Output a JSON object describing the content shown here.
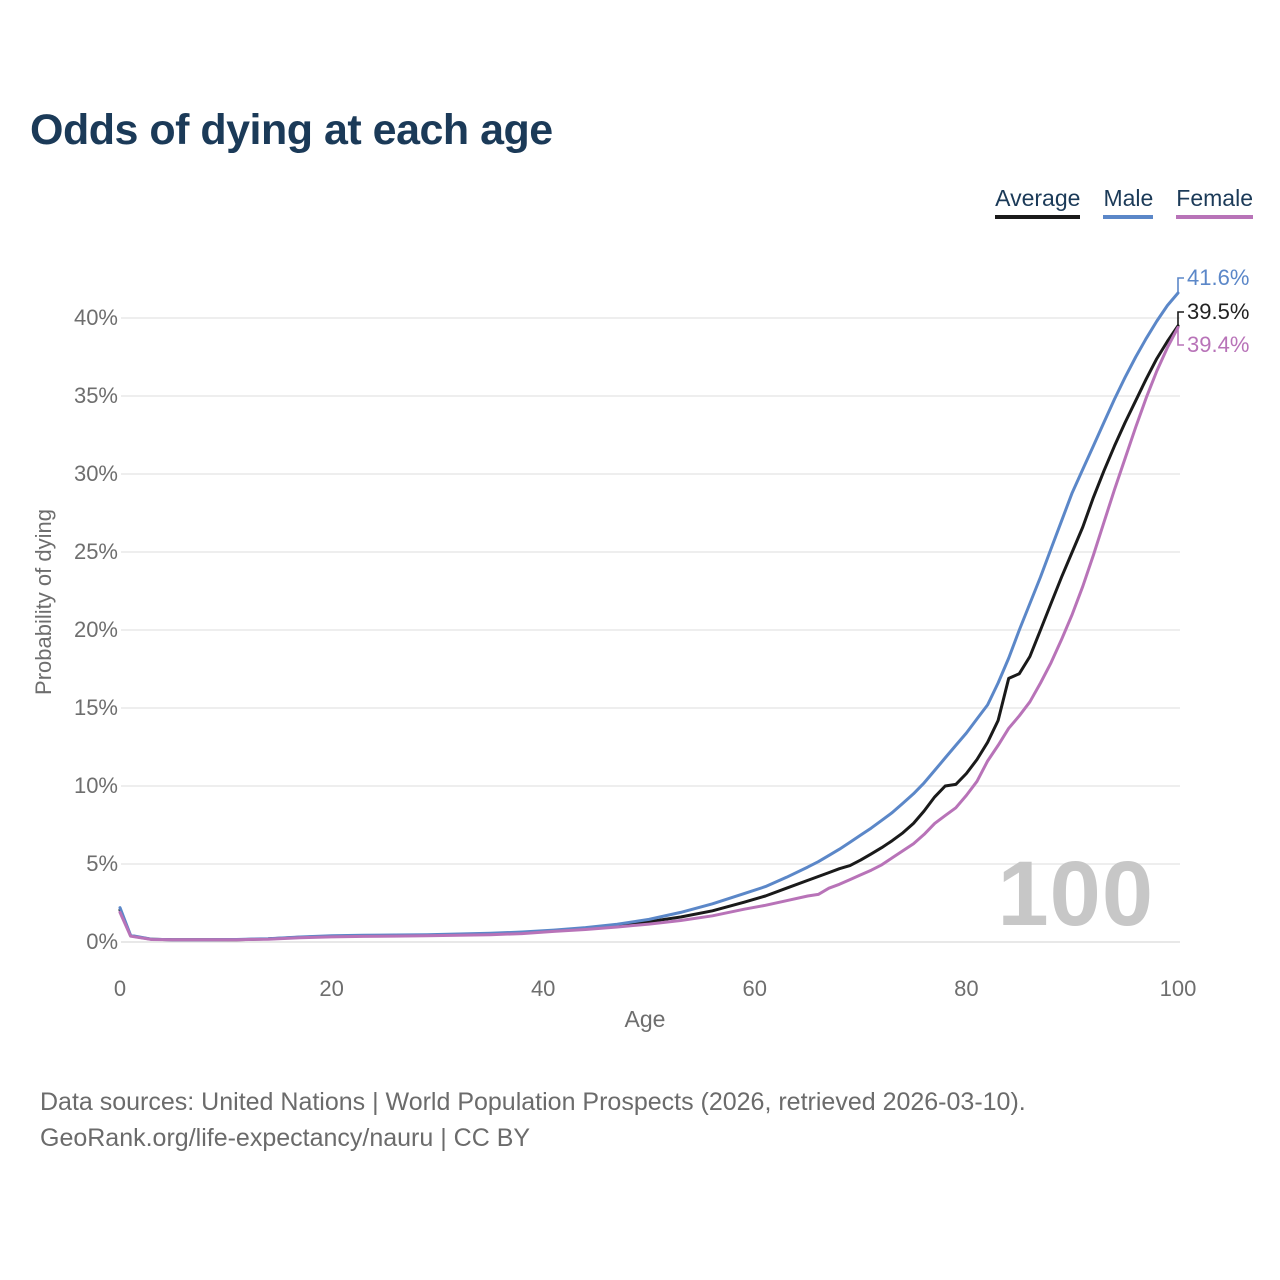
{
  "title": "Odds of dying at each age",
  "legend": [
    {
      "label": "Average",
      "color": "#1a1a1a"
    },
    {
      "label": "Male",
      "color": "#5b87c8"
    },
    {
      "label": "Female",
      "color": "#b873b8"
    }
  ],
  "chart_data": {
    "type": "line",
    "title": "Odds of dying at each age",
    "xlabel": "Age",
    "ylabel": "Probability of dying",
    "xlim": [
      0,
      100
    ],
    "ylim": [
      0,
      42
    ],
    "xticks": [
      0,
      20,
      40,
      60,
      80,
      100
    ],
    "ytick_values": [
      0,
      5,
      10,
      15,
      20,
      25,
      30,
      35,
      40
    ],
    "ytick_labels": [
      "0%",
      "5%",
      "10%",
      "15%",
      "20%",
      "25%",
      "30%",
      "35%",
      "40%"
    ],
    "grid": "horizontal",
    "legend_position": "top-right",
    "watermark": "100",
    "x_ages": [
      0,
      1,
      3,
      5,
      8,
      11,
      14,
      17,
      20,
      23,
      26,
      29,
      32,
      35,
      38,
      41,
      44,
      47,
      50,
      53,
      56,
      59,
      61,
      63,
      65,
      66,
      67,
      68,
      69,
      70,
      71,
      72,
      73,
      74,
      75,
      76,
      77,
      78,
      79,
      80,
      81,
      82,
      83,
      84,
      85,
      86,
      87,
      88,
      89,
      90,
      91,
      92,
      93,
      94,
      95,
      96,
      97,
      98,
      99,
      100
    ],
    "series": [
      {
        "name": "Average",
        "color": "#1a1a1a",
        "end_label": "39.5%",
        "values": [
          2.05,
          0.4,
          0.17,
          0.15,
          0.14,
          0.15,
          0.2,
          0.3,
          0.37,
          0.4,
          0.42,
          0.44,
          0.47,
          0.52,
          0.59,
          0.72,
          0.86,
          1.05,
          1.3,
          1.6,
          2.0,
          2.55,
          2.95,
          3.45,
          3.95,
          4.2,
          4.45,
          4.7,
          4.9,
          5.25,
          5.65,
          6.05,
          6.5,
          7.0,
          7.6,
          8.4,
          9.3,
          10.0,
          10.1,
          10.8,
          11.7,
          12.8,
          14.2,
          16.9,
          17.2,
          18.3,
          20.0,
          21.7,
          23.4,
          25.0,
          26.6,
          28.5,
          30.2,
          31.8,
          33.3,
          34.7,
          36.1,
          37.4,
          38.5,
          39.5
        ]
      },
      {
        "name": "Male",
        "color": "#5b87c8",
        "end_label": "41.6%",
        "values": [
          2.2,
          0.42,
          0.18,
          0.15,
          0.15,
          0.16,
          0.21,
          0.32,
          0.4,
          0.43,
          0.45,
          0.47,
          0.51,
          0.56,
          0.64,
          0.76,
          0.92,
          1.14,
          1.45,
          1.9,
          2.45,
          3.1,
          3.55,
          4.15,
          4.8,
          5.15,
          5.55,
          5.95,
          6.4,
          6.85,
          7.3,
          7.8,
          8.3,
          8.9,
          9.5,
          10.2,
          11.0,
          11.8,
          12.6,
          13.4,
          14.3,
          15.2,
          16.6,
          18.2,
          20.0,
          21.7,
          23.4,
          25.2,
          27.0,
          28.8,
          30.3,
          31.8,
          33.3,
          34.8,
          36.2,
          37.5,
          38.7,
          39.8,
          40.8,
          41.6
        ]
      },
      {
        "name": "Female",
        "color": "#b873b8",
        "end_label": "39.4%",
        "values": [
          1.9,
          0.37,
          0.16,
          0.14,
          0.14,
          0.15,
          0.18,
          0.27,
          0.33,
          0.36,
          0.38,
          0.4,
          0.43,
          0.47,
          0.54,
          0.68,
          0.8,
          0.96,
          1.15,
          1.38,
          1.68,
          2.1,
          2.35,
          2.65,
          2.95,
          3.05,
          3.45,
          3.7,
          4.0,
          4.3,
          4.6,
          4.95,
          5.4,
          5.85,
          6.3,
          6.9,
          7.6,
          8.1,
          8.6,
          9.4,
          10.3,
          11.6,
          12.6,
          13.7,
          14.5,
          15.4,
          16.6,
          17.9,
          19.4,
          21.0,
          22.8,
          24.8,
          26.9,
          29.0,
          31.0,
          33.0,
          34.9,
          36.6,
          38.1,
          39.4
        ]
      }
    ]
  },
  "footer": {
    "line1": "Data sources: United Nations | World Population Prospects (2026, retrieved 2026-03-10).",
    "line2": "GeoRank.org/life-expectancy/nauru | CC BY"
  }
}
